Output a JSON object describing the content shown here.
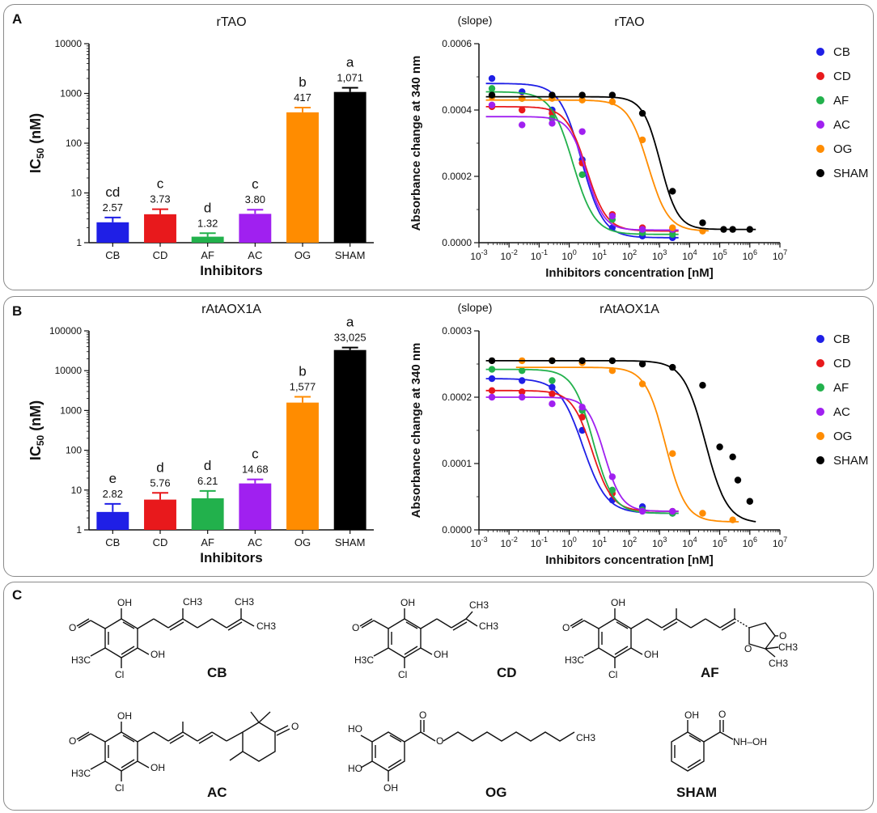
{
  "panels": {
    "a": "A",
    "b": "B",
    "c": "C"
  },
  "colors": {
    "CB": "#1f1fe6",
    "CD": "#e8191c",
    "AF": "#22b14c",
    "AC": "#a020f0",
    "OG": "#ff8c00",
    "SHAM": "#000000"
  },
  "chart_data": [
    {
      "type": "bar",
      "panel": "A",
      "title": "rTAO",
      "ylabel": "IC50 (nM)",
      "xlabel": "Inhibitors",
      "yscale": "log",
      "ylim": [
        1,
        10000
      ],
      "yticks": [
        {
          "v": 1,
          "label": "1"
        },
        {
          "v": 10,
          "label": "10"
        },
        {
          "v": 100,
          "label": "100"
        },
        {
          "v": 1000,
          "label": "1000"
        },
        {
          "v": 10000,
          "label": "10000"
        }
      ],
      "categories": [
        "CB",
        "CD",
        "AF",
        "AC",
        "OG",
        "SHAM"
      ],
      "values": [
        2.57,
        3.73,
        1.32,
        3.8,
        417,
        1071
      ],
      "errors": [
        3.2,
        4.7,
        1.55,
        4.6,
        520,
        1300
      ],
      "value_labels": [
        "2.57",
        "3.73",
        "1.32",
        "3.80",
        "417",
        "1,071"
      ],
      "letters": [
        "cd",
        "c",
        "d",
        "c",
        "b",
        "a"
      ]
    },
    {
      "type": "line",
      "panel": "A",
      "title": "rTAO",
      "ylabel": "Absorbance change at 340 nm",
      "ylabel_unit": "(slope)",
      "xlabel": "Inhibitors concentration [nM]",
      "xscale": "log",
      "xlim_exp": [
        -3,
        7
      ],
      "ylim": [
        0,
        0.0006
      ],
      "yticks": [
        {
          "v": 0,
          "label": "0.0000"
        },
        {
          "v": 0.0002,
          "label": "0.0002"
        },
        {
          "v": 0.0004,
          "label": "0.0004"
        },
        {
          "v": 0.0006,
          "label": "0.0006"
        }
      ],
      "legend": [
        "CB",
        "CD",
        "AF",
        "AC",
        "OG",
        "SHAM"
      ],
      "series": [
        {
          "name": "CB",
          "top": 0.00048,
          "bottom": 1.5e-05,
          "ic50": 2.57,
          "hill": 1.2,
          "x": [
            0.0027,
            0.027,
            0.27,
            2.7,
            27,
            270,
            2700
          ],
          "y": [
            0.000495,
            0.000455,
            0.0004,
            0.00025,
            4.5e-05,
            2e-05,
            1.5e-05
          ]
        },
        {
          "name": "CD",
          "top": 0.00041,
          "bottom": 3.5e-05,
          "ic50": 3.73,
          "hill": 1.3,
          "x": [
            0.0027,
            0.027,
            0.27,
            2.7,
            27,
            270,
            2700
          ],
          "y": [
            0.00041,
            0.0004,
            0.00039,
            0.00024,
            8.5e-05,
            4.5e-05,
            3.5e-05
          ]
        },
        {
          "name": "AF",
          "top": 0.000455,
          "bottom": 2.5e-05,
          "ic50": 1.32,
          "hill": 1.2,
          "x": [
            0.0027,
            0.027,
            0.27,
            2.7,
            27,
            270,
            2700
          ],
          "y": [
            0.000465,
            0.000435,
            0.000375,
            0.000205,
            7e-05,
            3e-05,
            2.5e-05
          ]
        },
        {
          "name": "AC",
          "top": 0.00038,
          "bottom": 3.8e-05,
          "ic50": 3.8,
          "hill": 1.5,
          "x": [
            0.0027,
            0.027,
            0.27,
            2.7,
            27,
            270,
            2700
          ],
          "y": [
            0.000415,
            0.000355,
            0.00036,
            0.000335,
            8e-05,
            4e-05,
            4e-05
          ]
        },
        {
          "name": "OG",
          "top": 0.00043,
          "bottom": 3.5e-05,
          "ic50": 417,
          "hill": 1.3,
          "x": [
            0.0027,
            0.027,
            0.27,
            2.7,
            27,
            270,
            2700,
            27000
          ],
          "y": [
            0.00044,
            0.000435,
            0.000435,
            0.00043,
            0.000425,
            0.00031,
            4.5e-05,
            3.5e-05
          ]
        },
        {
          "name": "SHAM",
          "top": 0.00044,
          "bottom": 4e-05,
          "ic50": 1071,
          "hill": 1.5,
          "x": [
            0.0027,
            0.27,
            2.7,
            27,
            270,
            2700,
            27000,
            135000,
            270000,
            1000000
          ],
          "y": [
            0.000445,
            0.000445,
            0.000445,
            0.000445,
            0.00039,
            0.000155,
            6e-05,
            4e-05,
            4e-05,
            4e-05
          ]
        }
      ]
    },
    {
      "type": "bar",
      "panel": "B",
      "title": "rAtAOX1A",
      "ylabel": "IC50 (nM)",
      "xlabel": "Inhibitors",
      "yscale": "log",
      "ylim": [
        1,
        100000
      ],
      "yticks": [
        {
          "v": 1,
          "label": "1"
        },
        {
          "v": 10,
          "label": "10"
        },
        {
          "v": 100,
          "label": "100"
        },
        {
          "v": 1000,
          "label": "1000"
        },
        {
          "v": 10000,
          "label": "10000"
        },
        {
          "v": 100000,
          "label": "100000"
        }
      ],
      "categories": [
        "CB",
        "CD",
        "AF",
        "AC",
        "OG",
        "SHAM"
      ],
      "values": [
        2.82,
        5.76,
        6.21,
        14.68,
        1577,
        33025
      ],
      "errors": [
        4.5,
        8.5,
        9.5,
        18.5,
        2200,
        38000
      ],
      "value_labels": [
        "2.82",
        "5.76",
        "6.21",
        "14.68",
        "1,577",
        "33,025"
      ],
      "letters": [
        "e",
        "d",
        "d",
        "c",
        "b",
        "a"
      ]
    },
    {
      "type": "line",
      "panel": "B",
      "title": "rAtAOX1A",
      "ylabel": "Absorbance change at 340 nm",
      "ylabel_unit": "(slope)",
      "xlabel": "Inhibitors concentration [nM]",
      "xscale": "log",
      "xlim_exp": [
        -3,
        7
      ],
      "ylim": [
        0,
        0.0003
      ],
      "yticks": [
        {
          "v": 0,
          "label": "0.0000"
        },
        {
          "v": 0.0001,
          "label": "0.0001"
        },
        {
          "v": 0.0002,
          "label": "0.0002"
        },
        {
          "v": 0.0003,
          "label": "0.0003"
        }
      ],
      "legend": [
        "CB",
        "CD",
        "AF",
        "AC",
        "OG",
        "SHAM"
      ],
      "series": [
        {
          "name": "CB",
          "top": 0.000228,
          "bottom": 2.5e-05,
          "ic50": 2.82,
          "hill": 1.1,
          "x": [
            0.0027,
            0.027,
            0.27,
            2.7,
            27,
            270,
            2700
          ],
          "y": [
            0.000228,
            0.000225,
            0.000215,
            0.00015,
            4.5e-05,
            3.5e-05,
            2.5e-05
          ]
        },
        {
          "name": "CD",
          "top": 0.00021,
          "bottom": 2.8e-05,
          "ic50": 5.76,
          "hill": 1.3,
          "x": [
            0.0027,
            0.027,
            0.27,
            2.7,
            27,
            270,
            2700
          ],
          "y": [
            0.00021,
            0.000208,
            0.000205,
            0.00017,
            5.5e-05,
            3e-05,
            2.8e-05
          ]
        },
        {
          "name": "AF",
          "top": 0.000242,
          "bottom": 2.5e-05,
          "ic50": 6.21,
          "hill": 1.3,
          "x": [
            0.0027,
            0.027,
            0.27,
            2.7,
            27,
            270,
            2700
          ],
          "y": [
            0.000242,
            0.00024,
            0.000225,
            0.00018,
            6e-05,
            3e-05,
            2.5e-05
          ]
        },
        {
          "name": "AC",
          "top": 0.0002,
          "bottom": 2.8e-05,
          "ic50": 14.68,
          "hill": 1.5,
          "x": [
            0.0027,
            0.027,
            0.27,
            2.7,
            27,
            270,
            2700
          ],
          "y": [
            0.0002,
            0.0002,
            0.00019,
            0.000185,
            8e-05,
            2.8e-05,
            2.8e-05
          ]
        },
        {
          "name": "OG",
          "top": 0.000245,
          "bottom": 1.2e-05,
          "ic50": 1577,
          "hill": 1.3,
          "x": [
            0.027,
            0.27,
            2.7,
            27,
            270,
            2700,
            27000,
            270000
          ],
          "y": [
            0.000255,
            0.000255,
            0.000252,
            0.00024,
            0.00022,
            0.000115,
            2.5e-05,
            1.5e-05
          ]
        },
        {
          "name": "SHAM",
          "top": 0.000255,
          "bottom": 1e-05,
          "ic50": 33025,
          "hill": 1.2,
          "x": [
            0.0027,
            0.27,
            2.7,
            27,
            270,
            2700,
            27000,
            100000,
            270000,
            400000,
            1000000
          ],
          "y": [
            0.000255,
            0.000255,
            0.000255,
            0.000255,
            0.00025,
            0.000245,
            0.000218,
            0.000125,
            0.00011,
            7.5e-05,
            4.3e-05
          ]
        }
      ]
    }
  ],
  "structures": [
    "CB",
    "CD",
    "AF",
    "AC",
    "OG",
    "SHAM"
  ],
  "atom_labels": {
    "oh": "OH",
    "ch3": "CH3",
    "h3c": "H3C",
    "cl": "Cl",
    "ho": "HO",
    "o": "O",
    "nhoh": "NH–OH"
  }
}
